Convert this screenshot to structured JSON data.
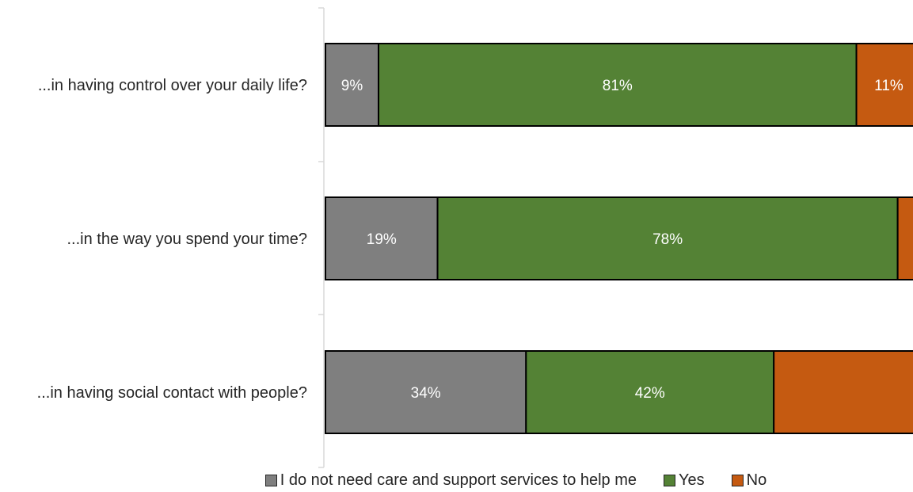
{
  "chart_data": {
    "type": "bar",
    "orientation": "horizontal",
    "stacked": true,
    "categories": [
      "...in having control over your daily life?",
      "...in the way you spend your time?",
      "...in having social contact with people?"
    ],
    "series": [
      {
        "name": "I do not need care and support services to help me",
        "color": "#7f7f7f",
        "values": [
          9,
          19,
          34
        ],
        "labels": [
          "9%",
          "19%",
          "34%"
        ]
      },
      {
        "name": "Yes",
        "color": "#548235",
        "values": [
          81,
          78,
          42
        ],
        "labels": [
          "81%",
          "78%",
          "42%"
        ]
      },
      {
        "name": "No",
        "color": "#c55a11",
        "values": [
          11,
          3,
          24
        ],
        "labels": [
          "11%",
          "",
          ""
        ]
      }
    ],
    "xlim": [
      0,
      100
    ],
    "legend_position": "bottom",
    "grid": false
  }
}
